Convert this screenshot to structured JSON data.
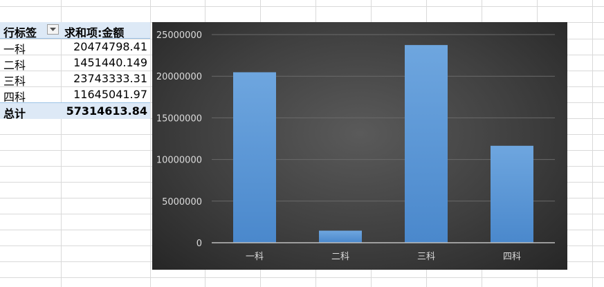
{
  "pivot": {
    "header": {
      "row_label": "行标签",
      "value_label": "求和项:金额"
    },
    "rows": [
      {
        "label": "一科",
        "value": "20474798.41"
      },
      {
        "label": "二科",
        "value": "1451440.149"
      },
      {
        "label": "三科",
        "value": "23743333.31"
      },
      {
        "label": "四科",
        "value": "11645041.97"
      }
    ],
    "total": {
      "label": "总计",
      "value": "57314613.84"
    }
  },
  "colors": {
    "bar": "#5b9bd5",
    "chart_bg": "#404040",
    "header_bg": "#dde9f6"
  },
  "chart_data": {
    "type": "bar",
    "categories": [
      "一科",
      "二科",
      "三科",
      "四科"
    ],
    "values": [
      20474798.41,
      1451440.149,
      23743333.31,
      11645041.97
    ],
    "ylim": [
      0,
      25000000
    ],
    "yticks": [
      "0",
      "5000000",
      "10000000",
      "15000000",
      "20000000",
      "25000000"
    ],
    "grid": true,
    "legend": "none"
  }
}
